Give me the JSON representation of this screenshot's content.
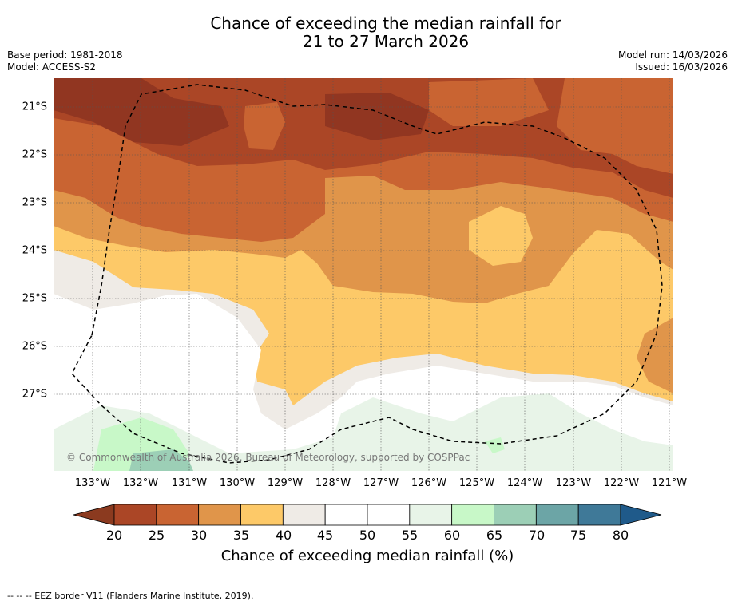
{
  "title_line1": "Chance of exceeding the median rainfall for",
  "title_line2": "21 to 27 March 2026",
  "base_period": "Base period: 1981-2018",
  "model": "Model: ACCESS-S2",
  "model_run": "Model run: 14/03/2026",
  "issued": "Issued: 16/03/2026",
  "copyright": "© Commonwealth of Australia 2026, Bureau of Meteorology, supported by COSPPac",
  "footer_note": "--  --  -- EEZ border V11 (Flanders Marine Institute, 2019).",
  "legend_title": "Chance of exceeding median rainfall (%)",
  "chart_data": {
    "type": "heatmap",
    "title": "Chance of exceeding the median rainfall for 21 to 27 March 2026",
    "lat_ticks": [
      "21°S",
      "22°S",
      "23°S",
      "24°S",
      "25°S",
      "26°S",
      "27°S"
    ],
    "lon_ticks": [
      "133°W",
      "132°W",
      "131°W",
      "130°W",
      "129°W",
      "128°W",
      "127°W",
      "126°W",
      "125°W",
      "124°W",
      "123°W",
      "122°W",
      "121°W"
    ],
    "lat_range": [
      -28.6,
      -20.4
    ],
    "lon_range": [
      -133.8,
      -120.9
    ],
    "colorbar": {
      "label": "Chance of exceeding median rainfall (%)",
      "ticks": [
        "20",
        "25",
        "30",
        "35",
        "40",
        "45",
        "50",
        "55",
        "60",
        "65",
        "70",
        "75",
        "80"
      ],
      "extend": "both",
      "under_color": "#8b3a1f",
      "over_color": "#1f5a8a",
      "bins": [
        {
          "range": [
            20,
            25
          ],
          "color": "#ab4626"
        },
        {
          "range": [
            25,
            30
          ],
          "color": "#c96432"
        },
        {
          "range": [
            30,
            35
          ],
          "color": "#e0954a"
        },
        {
          "range": [
            35,
            40
          ],
          "color": "#fdc968"
        },
        {
          "range": [
            40,
            45
          ],
          "color": "#efebe6"
        },
        {
          "range": [
            45,
            50
          ],
          "color": "#ffffff"
        },
        {
          "range": [
            50,
            55
          ],
          "color": "#ffffff"
        },
        {
          "range": [
            55,
            60
          ],
          "color": "#e8f4e8"
        },
        {
          "range": [
            60,
            65
          ],
          "color": "#c8f8c8"
        },
        {
          "range": [
            65,
            70
          ],
          "color": "#9ccfb6"
        },
        {
          "range": [
            70,
            75
          ],
          "color": "#6ca5a6"
        },
        {
          "range": [
            75,
            80
          ],
          "color": "#3f7998"
        }
      ]
    },
    "eez_border": "dashed"
  }
}
